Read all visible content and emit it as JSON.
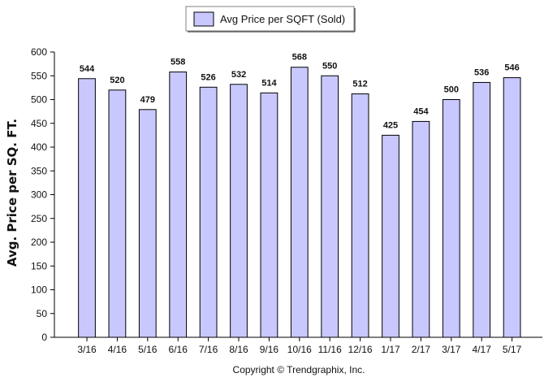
{
  "chart_data": {
    "type": "bar",
    "categories": [
      "3/16",
      "4/16",
      "5/16",
      "6/16",
      "7/16",
      "8/16",
      "9/16",
      "10/16",
      "11/16",
      "12/16",
      "1/17",
      "2/17",
      "3/17",
      "4/17",
      "5/17"
    ],
    "series": [
      {
        "name": "Avg Price per SQFT (Sold)",
        "values": [
          544,
          520,
          479,
          558,
          526,
          532,
          514,
          568,
          550,
          512,
          425,
          454,
          500,
          536,
          546
        ],
        "color": "#c8c8ff",
        "stroke": "#000000"
      }
    ],
    "data_labels": true,
    "xlabel": "",
    "ylabel": "Avg. Price per SQ. FT.",
    "ylim": [
      0,
      600
    ],
    "yticks": [
      0,
      50,
      100,
      150,
      200,
      250,
      300,
      350,
      400,
      450,
      500,
      550,
      600
    ],
    "grid": false,
    "legend_position": "top"
  },
  "footer": {
    "copyright": "Copyright © Trendgraphix, Inc."
  }
}
